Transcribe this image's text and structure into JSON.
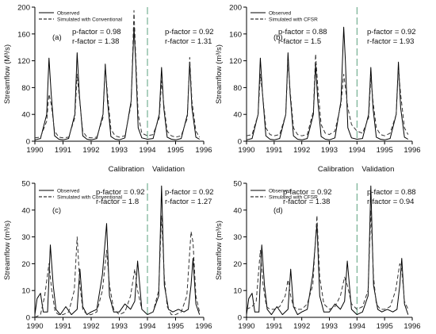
{
  "colors": {
    "observed": "#000000",
    "simulated": "#333333",
    "divider": "#5aa07c",
    "axis": "#000000"
  },
  "labels": {
    "calibration": "Calibration",
    "validation": "Validation"
  },
  "chart_data": [
    {
      "type": "line",
      "panel_label": "(a)",
      "ylabel": "Streamflow (M³/s)",
      "xlabel": "",
      "xlim": [
        1990,
        1996
      ],
      "ylim": [
        0,
        200
      ],
      "xticks": [
        1990,
        1991,
        1992,
        1993,
        1994,
        1995,
        1996
      ],
      "yticks": [
        0,
        40,
        80,
        120,
        160,
        200
      ],
      "divider_x": 1994,
      "legend": {
        "position": "top-left",
        "entries": [
          "Observed",
          "Simulated with Conventional"
        ]
      },
      "stats": [
        {
          "period": "calibration",
          "p_factor": "p-factor = 0.98",
          "r_factor": "r-factor = 1.38"
        },
        {
          "period": "validation",
          "p_factor": "p-factor = 0.92",
          "r_factor": "r-factor = 1.31"
        }
      ],
      "series": [
        {
          "name": "Observed",
          "style": "solid",
          "x": [
            1990.0,
            1990.2,
            1990.42,
            1990.5,
            1990.58,
            1990.7,
            1990.85,
            1991.0,
            1991.2,
            1991.42,
            1991.5,
            1991.58,
            1991.7,
            1991.85,
            1992.0,
            1992.2,
            1992.42,
            1992.5,
            1992.58,
            1992.7,
            1992.85,
            1993.0,
            1993.2,
            1993.42,
            1993.52,
            1993.58,
            1993.67,
            1993.8,
            1994.0,
            1994.2,
            1994.42,
            1994.5,
            1994.58,
            1994.7,
            1994.85,
            1995.0,
            1995.2,
            1995.42,
            1995.5,
            1995.58,
            1995.72,
            1995.85
          ],
          "y": [
            2,
            4,
            40,
            124,
            70,
            8,
            3,
            2,
            4,
            40,
            132,
            70,
            8,
            3,
            2,
            4,
            40,
            115,
            60,
            7,
            3,
            2,
            5,
            60,
            170,
            120,
            20,
            5,
            3,
            4,
            40,
            110,
            50,
            6,
            3,
            2,
            4,
            40,
            118,
            50,
            6,
            3
          ]
        },
        {
          "name": "Simulated with Conventional",
          "style": "dashed",
          "x": [
            1990.0,
            1990.2,
            1990.42,
            1990.5,
            1990.58,
            1990.7,
            1990.85,
            1991.0,
            1991.2,
            1991.42,
            1991.5,
            1991.58,
            1991.7,
            1991.85,
            1992.0,
            1992.2,
            1992.42,
            1992.5,
            1992.58,
            1992.7,
            1992.85,
            1993.0,
            1993.2,
            1993.42,
            1993.52,
            1993.58,
            1993.67,
            1993.8,
            1994.0,
            1994.2,
            1994.42,
            1994.5,
            1994.58,
            1994.7,
            1994.85,
            1995.0,
            1995.2,
            1995.42,
            1995.5,
            1995.58,
            1995.72,
            1995.85
          ],
          "y": [
            5,
            6,
            30,
            70,
            55,
            15,
            6,
            5,
            6,
            35,
            100,
            65,
            15,
            6,
            5,
            6,
            35,
            112,
            70,
            18,
            8,
            6,
            8,
            55,
            195,
            130,
            40,
            12,
            8,
            10,
            35,
            90,
            55,
            15,
            8,
            6,
            8,
            35,
            125,
            60,
            15,
            6
          ]
        }
      ]
    },
    {
      "type": "line",
      "panel_label": "(b)",
      "ylabel": "Streamflow (m³/s)",
      "xlabel": "",
      "xlim": [
        1990,
        1996
      ],
      "ylim": [
        0,
        200
      ],
      "xticks": [
        1990,
        1991,
        1992,
        1993,
        1994,
        1995,
        1996
      ],
      "yticks": [
        0,
        40,
        80,
        120,
        160,
        200
      ],
      "divider_x": 1994,
      "legend": {
        "position": "top-left",
        "entries": [
          "Observed",
          "Simulated with CFSR"
        ]
      },
      "stats": [
        {
          "period": "calibration",
          "p_factor": "p-factor = 0.88",
          "r_factor": "r-factor = 1.5"
        },
        {
          "period": "validation",
          "p_factor": "p-factor = 0.92",
          "r_factor": "r-factor = 1.93"
        }
      ],
      "series": [
        {
          "name": "Observed",
          "style": "solid",
          "x": [
            1990.0,
            1990.2,
            1990.42,
            1990.5,
            1990.58,
            1990.7,
            1990.85,
            1991.0,
            1991.2,
            1991.42,
            1991.5,
            1991.58,
            1991.7,
            1991.85,
            1992.0,
            1992.2,
            1992.42,
            1992.5,
            1992.58,
            1992.7,
            1992.85,
            1993.0,
            1993.2,
            1993.42,
            1993.52,
            1993.58,
            1993.67,
            1993.8,
            1994.0,
            1994.2,
            1994.42,
            1994.5,
            1994.58,
            1994.7,
            1994.85,
            1995.0,
            1995.2,
            1995.42,
            1995.5,
            1995.58,
            1995.72,
            1995.85
          ],
          "y": [
            2,
            4,
            40,
            124,
            70,
            8,
            3,
            2,
            4,
            40,
            132,
            70,
            8,
            3,
            2,
            4,
            40,
            115,
            60,
            7,
            3,
            2,
            5,
            60,
            170,
            120,
            20,
            5,
            3,
            4,
            40,
            110,
            50,
            6,
            3,
            2,
            4,
            40,
            118,
            50,
            6,
            3
          ]
        },
        {
          "name": "Simulated with CFSR",
          "style": "dashed",
          "x": [
            1990.0,
            1990.2,
            1990.42,
            1990.5,
            1990.58,
            1990.7,
            1990.85,
            1991.0,
            1991.2,
            1991.42,
            1991.5,
            1991.58,
            1991.7,
            1991.85,
            1992.0,
            1992.2,
            1992.42,
            1992.5,
            1992.58,
            1992.7,
            1992.85,
            1993.0,
            1993.2,
            1993.42,
            1993.52,
            1993.58,
            1993.67,
            1993.8,
            1994.0,
            1994.2,
            1994.42,
            1994.5,
            1994.58,
            1994.7,
            1994.85,
            1995.0,
            1995.2,
            1995.42,
            1995.5,
            1995.58,
            1995.72,
            1995.85
          ],
          "y": [
            8,
            10,
            40,
            100,
            70,
            20,
            10,
            8,
            10,
            40,
            120,
            75,
            20,
            10,
            8,
            10,
            45,
            130,
            80,
            25,
            12,
            10,
            15,
            55,
            100,
            80,
            50,
            25,
            15,
            12,
            35,
            95,
            60,
            20,
            10,
            8,
            12,
            40,
            108,
            70,
            20,
            10
          ]
        }
      ]
    },
    {
      "type": "line",
      "panel_label": "(c)",
      "ylabel": "Streamflow (m³/s)",
      "xlabel": "",
      "xlim": [
        1990,
        1996
      ],
      "ylim": [
        0,
        50
      ],
      "xticks": [
        1990,
        1991,
        1992,
        1993,
        1994,
        1995,
        1996
      ],
      "yticks": [
        0,
        10,
        20,
        30,
        40,
        50
      ],
      "divider_x": 1994,
      "legend": {
        "position": "top-left",
        "entries": [
          "Observed",
          "Simulated with Conventional"
        ]
      },
      "stats": [
        {
          "period": "calibration",
          "p_factor": "p-factor = 0.92",
          "r_factor": "r-factor = 1.8"
        },
        {
          "period": "validation",
          "p_factor": "p-factor = 0.92",
          "r_factor": "r-factor = 1.27"
        }
      ],
      "series": [
        {
          "name": "Observed",
          "style": "solid",
          "x": [
            1990.0,
            1990.08,
            1990.2,
            1990.3,
            1990.45,
            1990.55,
            1990.65,
            1990.75,
            1990.9,
            1991.1,
            1991.3,
            1991.5,
            1991.6,
            1991.7,
            1991.85,
            1992.0,
            1992.2,
            1992.4,
            1992.55,
            1992.65,
            1992.8,
            1993.0,
            1993.2,
            1993.4,
            1993.55,
            1993.65,
            1993.8,
            1994.0,
            1994.2,
            1994.4,
            1994.5,
            1994.6,
            1994.75,
            1994.9,
            1995.1,
            1995.3,
            1995.45,
            1995.55,
            1995.62,
            1995.72,
            1995.85
          ],
          "y": [
            1,
            7,
            9,
            2,
            2,
            27,
            12,
            3,
            1,
            4,
            1,
            3,
            18,
            4,
            1,
            2,
            3,
            16,
            35,
            8,
            2,
            2,
            5,
            3,
            6,
            21,
            3,
            1,
            2,
            8,
            49,
            12,
            3,
            2,
            3,
            2,
            3,
            12,
            22,
            5,
            1
          ]
        },
        {
          "name": "Simulated with Conventional",
          "style": "dashed",
          "x": [
            1990.0,
            1990.2,
            1990.35,
            1990.5,
            1990.6,
            1990.72,
            1990.85,
            1991.0,
            1991.2,
            1991.4,
            1991.5,
            1991.6,
            1991.7,
            1991.85,
            1992.0,
            1992.2,
            1992.4,
            1992.55,
            1992.65,
            1992.8,
            1993.0,
            1993.2,
            1993.4,
            1993.55,
            1993.65,
            1993.8,
            1994.0,
            1994.2,
            1994.4,
            1994.5,
            1994.6,
            1994.7,
            1994.85,
            1995.0,
            1995.2,
            1995.4,
            1995.55,
            1995.62,
            1995.72,
            1995.85
          ],
          "y": [
            0,
            1,
            8,
            20,
            10,
            2,
            1,
            1,
            2,
            10,
            30,
            12,
            3,
            1,
            1,
            2,
            10,
            25,
            12,
            3,
            1,
            2,
            8,
            18,
            10,
            3,
            1,
            2,
            10,
            38,
            15,
            4,
            1,
            1,
            2,
            8,
            32,
            28,
            8,
            2
          ]
        }
      ]
    },
    {
      "type": "line",
      "panel_label": "(d)",
      "ylabel": "Streamflow (m³/s)",
      "xlabel": "",
      "xlim": [
        1990,
        1996
      ],
      "ylim": [
        0,
        50
      ],
      "xticks": [
        1990,
        1991,
        1992,
        1993,
        1994,
        1995,
        1996
      ],
      "yticks": [
        0,
        10,
        20,
        30,
        40,
        50
      ],
      "divider_x": 1994,
      "legend": {
        "position": "top-left",
        "entries": [
          "Observed",
          "Simulated with CFSR"
        ]
      },
      "stats": [
        {
          "period": "calibration",
          "p_factor": "p-factor = 0.92",
          "r_factor": "r-factor = 1.38"
        },
        {
          "period": "validation",
          "p_factor": "p-factor = 0.88",
          "r_factor": "r-factor = 0.94"
        }
      ],
      "series": [
        {
          "name": "Observed",
          "style": "solid",
          "x": [
            1990.0,
            1990.08,
            1990.2,
            1990.3,
            1990.45,
            1990.55,
            1990.65,
            1990.75,
            1990.9,
            1991.1,
            1991.3,
            1991.5,
            1991.6,
            1991.7,
            1991.85,
            1992.0,
            1992.2,
            1992.4,
            1992.55,
            1992.65,
            1992.8,
            1993.0,
            1993.2,
            1993.4,
            1993.55,
            1993.65,
            1993.8,
            1994.0,
            1994.2,
            1994.4,
            1994.5,
            1994.6,
            1994.75,
            1994.9,
            1995.1,
            1995.3,
            1995.45,
            1995.55,
            1995.62,
            1995.72,
            1995.85
          ],
          "y": [
            1,
            7,
            9,
            2,
            2,
            27,
            12,
            3,
            1,
            4,
            1,
            3,
            18,
            4,
            1,
            2,
            3,
            16,
            35,
            8,
            2,
            2,
            5,
            3,
            6,
            21,
            3,
            1,
            2,
            8,
            49,
            12,
            3,
            2,
            3,
            2,
            3,
            12,
            22,
            5,
            1
          ]
        },
        {
          "name": "Simulated with CFSR",
          "style": "dashed",
          "x": [
            1990.0,
            1990.2,
            1990.35,
            1990.5,
            1990.6,
            1990.72,
            1990.85,
            1991.0,
            1991.2,
            1991.4,
            1991.5,
            1991.6,
            1991.7,
            1991.85,
            1992.0,
            1992.2,
            1992.4,
            1992.55,
            1992.65,
            1992.8,
            1993.0,
            1993.2,
            1993.4,
            1993.55,
            1993.65,
            1993.8,
            1994.0,
            1994.2,
            1994.4,
            1994.5,
            1994.6,
            1994.7,
            1994.85,
            1995.0,
            1995.2,
            1995.4,
            1995.55,
            1995.62,
            1995.72,
            1995.85
          ],
          "y": [
            3,
            4,
            6,
            25,
            12,
            4,
            3,
            3,
            4,
            8,
            14,
            8,
            4,
            3,
            3,
            5,
            12,
            38,
            15,
            5,
            3,
            4,
            8,
            15,
            12,
            5,
            3,
            4,
            10,
            40,
            15,
            5,
            3,
            3,
            4,
            10,
            20,
            18,
            6,
            3
          ]
        }
      ]
    }
  ]
}
